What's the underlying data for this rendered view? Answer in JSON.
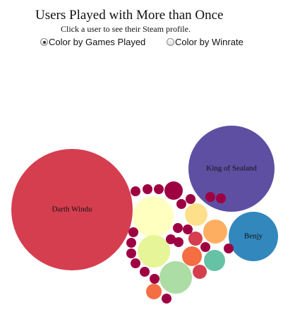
{
  "header": {
    "title": "Users Played with More than Once",
    "subtitle": "Click a user to see their Steam profile."
  },
  "controls": {
    "options": [
      {
        "label": "Color by Games Played",
        "checked": true
      },
      {
        "label": "Color by Winrate",
        "checked": false
      }
    ]
  },
  "chart_data": {
    "type": "bubble",
    "bubbles": [
      {
        "label": "Darth Windu",
        "color": "#d53e4f"
      },
      {
        "label": "King of Sealand",
        "color": "#5e4fa2"
      },
      {
        "label": "Benjy",
        "color": "#3288bd"
      },
      {
        "label": "",
        "color": "#ffffbf"
      },
      {
        "label": "",
        "color": "#e6f598"
      },
      {
        "label": "",
        "color": "#abdda4"
      },
      {
        "label": "",
        "color": "#fee08b"
      },
      {
        "label": "",
        "color": "#fdae61"
      },
      {
        "label": "",
        "color": "#66c2a5"
      },
      {
        "label": "",
        "color": "#f46d43"
      },
      {
        "label": "",
        "color": "#f46d43"
      },
      {
        "label": "",
        "color": "#9e0142"
      },
      {
        "label": "",
        "color": "#d53e4f"
      },
      {
        "label": "",
        "color": "#d53e4f"
      },
      {
        "label": "",
        "color": "#9e0142"
      },
      {
        "label": "",
        "color": "#9e0142"
      },
      {
        "label": "",
        "color": "#9e0142"
      },
      {
        "label": "",
        "color": "#9e0142"
      },
      {
        "label": "",
        "color": "#9e0142"
      },
      {
        "label": "",
        "color": "#9e0142"
      },
      {
        "label": "",
        "color": "#9e0142"
      },
      {
        "label": "",
        "color": "#9e0142"
      },
      {
        "label": "",
        "color": "#9e0142"
      },
      {
        "label": "",
        "color": "#9e0142"
      },
      {
        "label": "",
        "color": "#9e0142"
      },
      {
        "label": "",
        "color": "#9e0142"
      },
      {
        "label": "",
        "color": "#9e0142"
      },
      {
        "label": "",
        "color": "#9e0142"
      },
      {
        "label": "",
        "color": "#9e0142"
      },
      {
        "label": "",
        "color": "#9e0142"
      },
      {
        "label": "",
        "color": "#9e0142"
      },
      {
        "label": "",
        "color": "#9e0142"
      },
      {
        "label": "",
        "color": "#9e0142"
      },
      {
        "label": "",
        "color": "#9e0142"
      }
    ]
  }
}
